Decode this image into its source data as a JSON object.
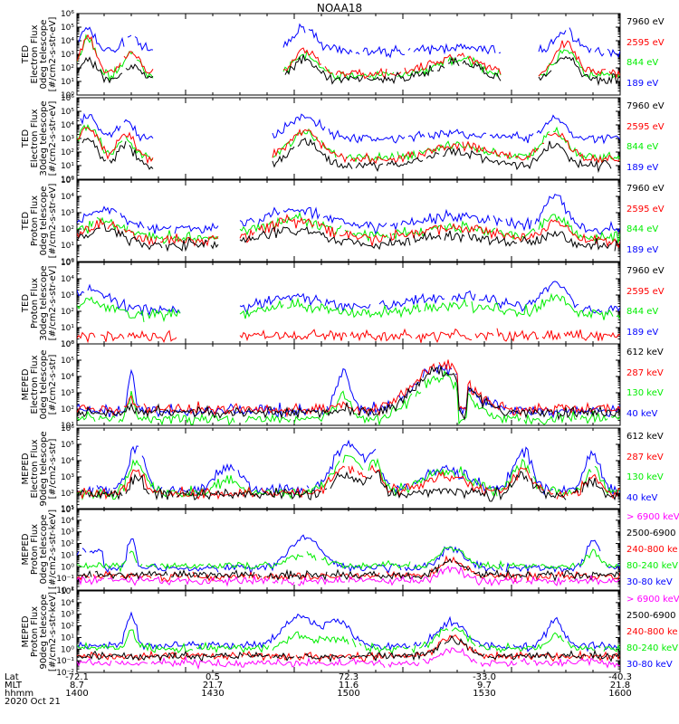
{
  "title": "NOAA18",
  "colors": {
    "blue": "#0000ff",
    "red": "#ff0000",
    "green": "#00ee00",
    "black": "#000000",
    "magenta": "#ff00ff"
  },
  "chart_data": [
    {
      "type": "line",
      "panel": 1,
      "ylabel": [
        "TED",
        "Electron Flux",
        "0deg telescope",
        "[#/cm2-s-str-eV]"
      ],
      "ylim_log": [
        0,
        6
      ],
      "yticks": [
        "10⁰",
        "10¹",
        "10²",
        "10³",
        "10⁴",
        "10⁵",
        "10⁶"
      ],
      "series": [
        {
          "name": "7960 eV",
          "color": "black"
        },
        {
          "name": "2595 eV",
          "color": "red"
        },
        {
          "name": "844 eV",
          "color": "green"
        },
        {
          "name": "189 eV",
          "color": "blue"
        }
      ]
    },
    {
      "type": "line",
      "panel": 2,
      "ylabel": [
        "TED",
        "Electron Flux",
        "30deg telescope",
        "[#/cm2-s-str-eV]"
      ],
      "ylim_log": [
        0,
        6
      ],
      "yticks": [
        "10⁰",
        "10¹",
        "10²",
        "10³",
        "10⁴",
        "10⁵",
        "10⁶"
      ],
      "series": [
        {
          "name": "7960 eV",
          "color": "black"
        },
        {
          "name": "2595 eV",
          "color": "red"
        },
        {
          "name": "844 eV",
          "color": "green"
        },
        {
          "name": "189 eV",
          "color": "blue"
        }
      ]
    },
    {
      "type": "line",
      "panel": 3,
      "ylabel": [
        "TED",
        "Proton Flux",
        "0deg telescope",
        "[#/cm2-s-str-eV]"
      ],
      "ylim_log": [
        0,
        5
      ],
      "yticks": [
        "10⁰",
        "10¹",
        "10²",
        "10³",
        "10⁴",
        "10⁵"
      ],
      "series": [
        {
          "name": "7960 eV",
          "color": "black"
        },
        {
          "name": "2595 eV",
          "color": "red"
        },
        {
          "name": "844 eV",
          "color": "green"
        },
        {
          "name": "189 eV",
          "color": "blue"
        }
      ]
    },
    {
      "type": "line",
      "panel": 4,
      "ylabel": [
        "TED",
        "Proton Flux",
        "30deg telescope",
        "[#/cm2-s-str-eV]"
      ],
      "ylim_log": [
        0,
        5
      ],
      "yticks": [
        "10⁰",
        "10¹",
        "10²",
        "10³",
        "10⁴",
        "10⁵"
      ],
      "series": [
        {
          "name": "7960 eV",
          "color": "black"
        },
        {
          "name": "2595 eV",
          "color": "red"
        },
        {
          "name": "844 eV",
          "color": "green"
        },
        {
          "name": "189 eV",
          "color": "blue"
        }
      ]
    },
    {
      "type": "line",
      "panel": 5,
      "ylabel": [
        "MEPED",
        "Electron Flux",
        "0deg telescope",
        "[#/cm2-s-str]"
      ],
      "ylim_log": [
        1,
        6
      ],
      "yticks": [
        "10¹",
        "10²",
        "10³",
        "10⁴",
        "10⁵",
        "10⁶"
      ],
      "series": [
        {
          "name": "612 keV",
          "color": "black"
        },
        {
          "name": "287 keV",
          "color": "red"
        },
        {
          "name": "130 keV",
          "color": "green"
        },
        {
          "name": "40 keV",
          "color": "blue"
        }
      ]
    },
    {
      "type": "line",
      "panel": 6,
      "ylabel": [
        "MEPED",
        "Electron Flux",
        "90deg telescope",
        "[#/cm2-s-str]"
      ],
      "ylim_log": [
        1,
        6
      ],
      "yticks": [
        "10¹",
        "10²",
        "10³",
        "10⁴",
        "10⁵",
        "10⁶"
      ],
      "series": [
        {
          "name": "612 keV",
          "color": "black"
        },
        {
          "name": "287 keV",
          "color": "red"
        },
        {
          "name": "130 keV",
          "color": "green"
        },
        {
          "name": "40 keV",
          "color": "blue"
        }
      ]
    },
    {
      "type": "line",
      "panel": 7,
      "ylabel": [
        "MEPED",
        "Proton Flux",
        "0deg telescope",
        "[#/cm2-s-str-keV]"
      ],
      "ylim_log": [
        -2,
        5
      ],
      "yticks": [
        "10⁻²",
        "10⁻¹",
        "10⁰",
        "10¹",
        "10²",
        "10³",
        "10⁴",
        "10⁵"
      ],
      "series": [
        {
          "name": "> 6900 keV",
          "color": "magenta"
        },
        {
          "name": "2500-6900",
          "color": "black"
        },
        {
          "name": "240-800 ke",
          "color": "red"
        },
        {
          "name": "80-240 keV",
          "color": "green"
        },
        {
          "name": "30-80 keV",
          "color": "blue"
        }
      ]
    },
    {
      "type": "line",
      "panel": 8,
      "ylabel": [
        "MEPED",
        "Proton Flux",
        "90deg telescope",
        "[#/cm2-s-str-keV]"
      ],
      "ylim_log": [
        -2,
        5
      ],
      "yticks": [
        "10⁻²",
        "10⁻¹",
        "10⁰",
        "10¹",
        "10²",
        "10³",
        "10⁴",
        "10⁵"
      ],
      "series": [
        {
          "name": "> 6900 keV",
          "color": "magenta"
        },
        {
          "name": "2500-6900",
          "color": "black"
        },
        {
          "name": "240-800 ke",
          "color": "red"
        },
        {
          "name": "80-240 keV",
          "color": "green"
        },
        {
          "name": "30-80 keV",
          "color": "blue"
        }
      ]
    }
  ],
  "xaxis": {
    "row_labels": [
      "Lat",
      "MLT",
      "hhmm",
      "2020 Oct 21"
    ],
    "ticks": [
      {
        "lat": "-72.1",
        "mlt": "8.7",
        "hhmm": "1400"
      },
      {
        "lat": "0.5",
        "mlt": "21.7",
        "hhmm": "1430"
      },
      {
        "lat": "72.3",
        "mlt": "11.6",
        "hhmm": "1500"
      },
      {
        "lat": "-33.0",
        "mlt": "9.7",
        "hhmm": "1530"
      },
      {
        "lat": "-40.3",
        "mlt": "21.8",
        "hhmm": "1600"
      }
    ]
  }
}
